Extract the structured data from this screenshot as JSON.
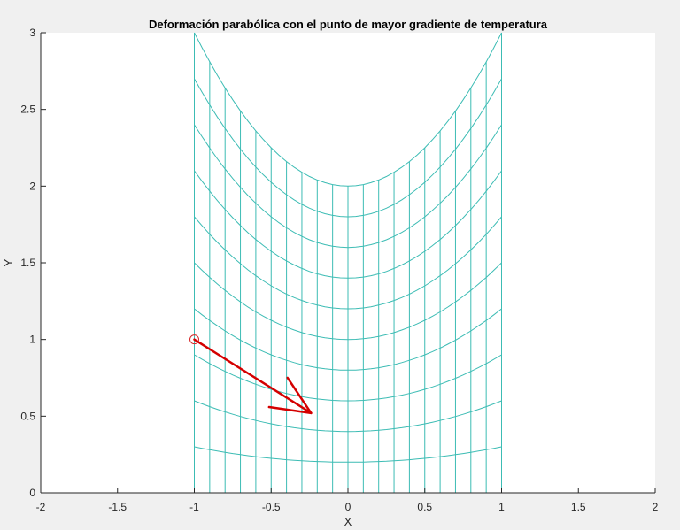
{
  "chart_data": {
    "type": "line",
    "title": "Deformación parabólica con el punto de mayor gradiente de temperatura",
    "xlabel": "X",
    "ylabel": "Y",
    "xlim": [
      -2,
      2
    ],
    "ylim": [
      0,
      3
    ],
    "xticks": [
      "-2",
      "-1.5",
      "-1",
      "-0.5",
      "0",
      "0.5",
      "1",
      "1.5",
      "2"
    ],
    "yticks": [
      "0",
      "0.5",
      "1",
      "1.5",
      "2",
      "2.5",
      "3"
    ],
    "grid": false,
    "mesh": {
      "description": "Deformed grid: horizontal curves y = c*(1 + x^2/2), vertical lines x from -1 to 1",
      "x_range": [
        -1,
        1
      ],
      "x_step": 0.1,
      "curve_levels": [
        0,
        0.2,
        0.4,
        0.6,
        0.8,
        1.0,
        1.2,
        1.4,
        1.6,
        1.8,
        2.0
      ],
      "top_curve": "y = 2 + x^2",
      "color": "#3cbcb4"
    },
    "marker": {
      "x": -1,
      "y": 1,
      "shape": "circle",
      "color": "#d62728"
    },
    "arrow": {
      "x0": -1,
      "y0": 1,
      "x1": -0.24,
      "y1": 0.52,
      "color": "#d40000"
    }
  }
}
